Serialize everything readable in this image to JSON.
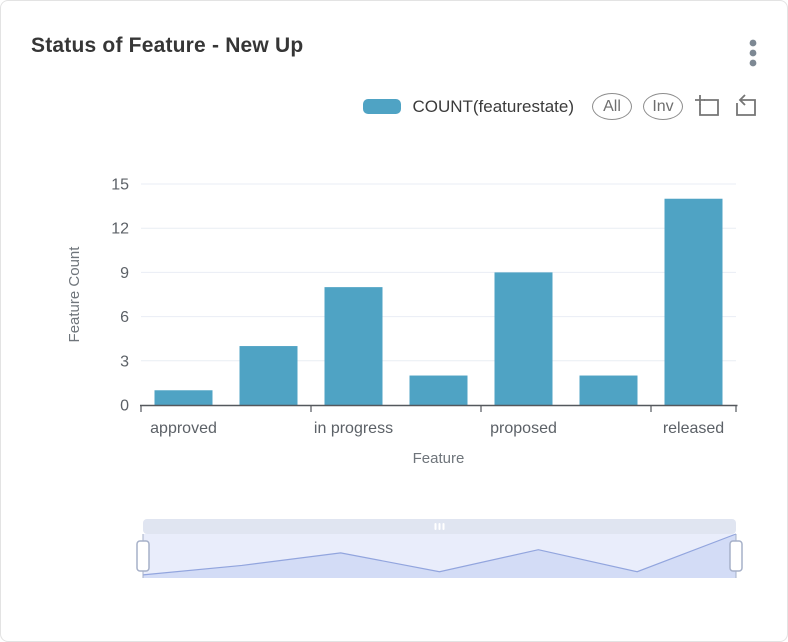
{
  "header": {
    "title": "Status of Feature - New Up"
  },
  "legend": {
    "series_label": "COUNT(featurestate)",
    "all_label": "All",
    "inv_label": "Inv",
    "swatch_color": "#4FA3C4"
  },
  "icons": {
    "kebab": "more-vertical-icon",
    "zoom_select": "zoom-select-icon",
    "zoom_reset": "zoom-reset-icon",
    "slider_grip": "drag-grip-icon"
  },
  "chart_data": {
    "type": "bar",
    "title": "Status of Feature - New Up",
    "series": [
      {
        "name": "COUNT(featurestate)",
        "values": [
          1,
          4,
          8,
          2,
          9,
          2,
          14
        ]
      }
    ],
    "categories": [
      "approved",
      "",
      "in progress",
      "",
      "proposed",
      "",
      "released"
    ],
    "x_labels_visible": [
      "approved",
      "in progress",
      "proposed",
      "released"
    ],
    "xlabel": "Feature",
    "ylabel": "Feature Count",
    "ylim": [
      0,
      15
    ],
    "yticks": [
      0,
      3,
      6,
      9,
      12,
      15
    ],
    "grid": true,
    "legend_position": "top-right",
    "bar_color": "#4FA3C4",
    "datazoom": {
      "start_percent": 0,
      "end_percent": 100,
      "shadow_values": [
        1,
        4,
        8,
        2,
        9,
        2,
        14
      ]
    }
  },
  "colors": {
    "bar": "#4FA3C4",
    "axis_line": "#54585d",
    "tick_label": "#5c6167",
    "axis_name": "#6f757b",
    "gridline": "#e9edf4",
    "kebab_dots": "#7d8893",
    "tool_icon": "#757575",
    "slider_move_bar": "#e0e5f1",
    "slider_body": "#e9edfb",
    "slider_shadow_fill": "#d3dcf6",
    "slider_shadow_line": "#92a5de",
    "slider_handle_border": "#a6b0c8",
    "card_border": "#e3e3e3"
  }
}
